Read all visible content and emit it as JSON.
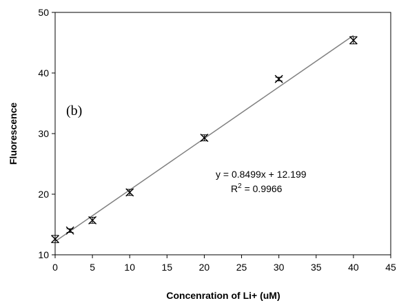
{
  "chart_data": {
    "type": "scatter",
    "panel_label": "(b)",
    "xlabel": "Concenration of Li+ (uM)",
    "ylabel": "Fluorescence",
    "xlim": [
      0,
      45
    ],
    "ylim": [
      10,
      50
    ],
    "x_ticks": [
      0,
      5,
      10,
      15,
      20,
      25,
      30,
      35,
      40,
      45
    ],
    "y_ticks": [
      10,
      20,
      30,
      40,
      50
    ],
    "grid": false,
    "series": [
      {
        "marker": "x",
        "color": "#000000",
        "points": [
          {
            "x": 0,
            "y": 12.6,
            "err": 0.6
          },
          {
            "x": 2,
            "y": 14.0,
            "err": 0.3
          },
          {
            "x": 5,
            "y": 15.7,
            "err": 0.5
          },
          {
            "x": 10,
            "y": 20.3,
            "err": 0.5
          },
          {
            "x": 20,
            "y": 29.3,
            "err": 0.5
          },
          {
            "x": 30,
            "y": 39.0,
            "err": 0.3
          },
          {
            "x": 40,
            "y": 45.4,
            "err": 0.6
          }
        ]
      }
    ],
    "trendline": {
      "slope": 0.8499,
      "intercept": 12.199,
      "x_range": [
        0,
        40
      ],
      "color": "#808080",
      "equation": "y = 0.8499x + 12.199",
      "r2_prefix": "R",
      "r2_sup": "2",
      "r2_suffix": " = 0.9966"
    }
  }
}
